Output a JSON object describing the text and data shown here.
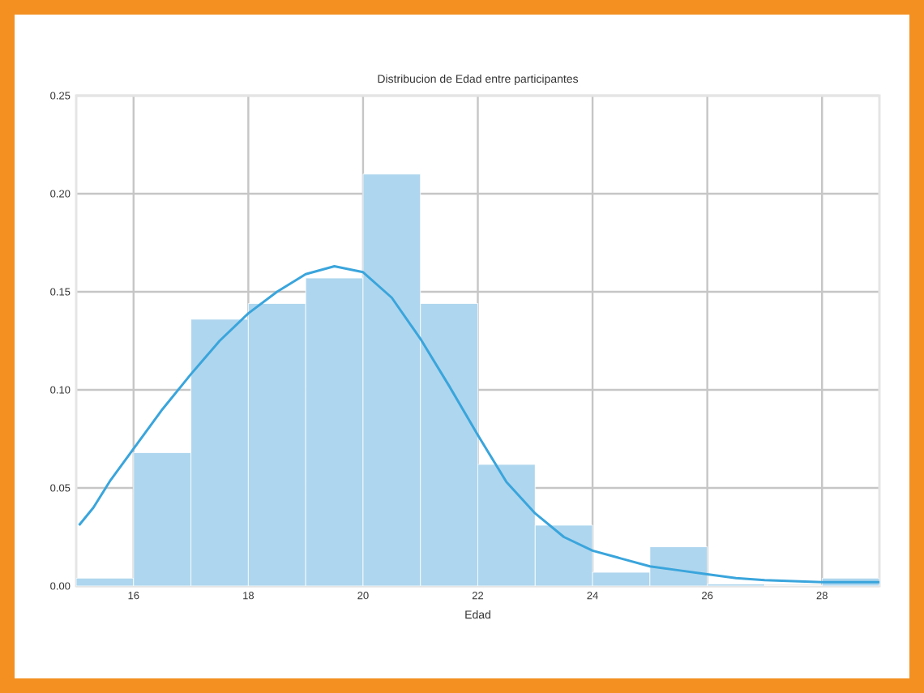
{
  "chart_data": {
    "type": "histogram",
    "title": "Distribucion de Edad entre participantes",
    "xlabel": "Edad",
    "series": [
      {
        "color": "#aed6ee",
        "bins": [
          15,
          16,
          17,
          18,
          19,
          20,
          21,
          22,
          23,
          24,
          25,
          26,
          27,
          28,
          29
        ],
        "values": [
          0.004,
          0.068,
          0.136,
          0.144,
          0.157,
          0.21,
          0.144,
          0.062,
          0.031,
          0.007,
          0.02,
          0.001,
          0,
          0.004
        ]
      },
      {
        "type": "line",
        "color": "#3aa5dc",
        "x": [
          15.05,
          15.3,
          15.6,
          16,
          16.5,
          17,
          17.5,
          18,
          18.5,
          19,
          19.5,
          20,
          20.5,
          21,
          21.5,
          22,
          22.5,
          23,
          23.5,
          24,
          24.5,
          25,
          25.5,
          26,
          26.5,
          27,
          27.5,
          28,
          29
        ],
        "values": [
          0.031,
          0.04,
          0.054,
          0.07,
          0.09,
          0.108,
          0.125,
          0.139,
          0.15,
          0.159,
          0.163,
          0.16,
          0.147,
          0.126,
          0.102,
          0.077,
          0.053,
          0.037,
          0.025,
          0.018,
          0.014,
          0.01,
          0.008,
          0.006,
          0.004,
          0.003,
          0.0025,
          0.002,
          0.002
        ]
      }
    ],
    "xlim": [
      15,
      29
    ],
    "ylim": [
      0,
      0.25
    ],
    "xticks": [
      16,
      18,
      20,
      22,
      24,
      26,
      28
    ],
    "yticks": [
      {
        "value": 0,
        "label": "0.00"
      },
      {
        "value": 0.05,
        "label": "0.05"
      },
      {
        "value": 0.1,
        "label": "0.10"
      },
      {
        "value": 0.15,
        "label": "0.15"
      },
      {
        "value": 0.2,
        "label": "0.20"
      },
      {
        "value": 0.25,
        "label": "0.25"
      }
    ],
    "grid": true
  }
}
